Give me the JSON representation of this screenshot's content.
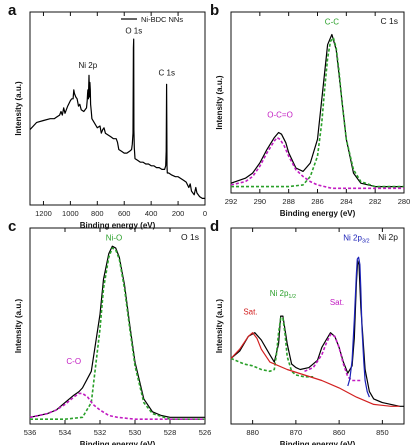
{
  "chart_data": [
    {
      "panel": "a",
      "type": "line",
      "title": "",
      "xlabel": "Binding energy (eV)",
      "ylabel": "Intensity (a.u.)",
      "xlim": [
        1300,
        0
      ],
      "ylim": [
        0,
        100
      ],
      "xticks": [
        1200,
        1000,
        800,
        600,
        400,
        200,
        0
      ],
      "series": [
        {
          "name": "Ni-BDC NNs",
          "color": "#000000",
          "x": [
            1300,
            1250,
            1200,
            1150,
            1120,
            1100,
            1080,
            1070,
            1060,
            1050,
            1040,
            1020,
            1000,
            990,
            980,
            975,
            970,
            960,
            950,
            940,
            930,
            920,
            900,
            880,
            875,
            872,
            870,
            866,
            862,
            858,
            855,
            852,
            850,
            845,
            840,
            800,
            780,
            770,
            760,
            750,
            740,
            720,
            700,
            680,
            660,
            650,
            640,
            620,
            600,
            580,
            560,
            545,
            540,
            535,
            532,
            530,
            528,
            525,
            520,
            500,
            480,
            460,
            440,
            420,
            400,
            380,
            360,
            340,
            320,
            300,
            292,
            288,
            286,
            285,
            284,
            282,
            280,
            270,
            250,
            220,
            200,
            180,
            160,
            140,
            120,
            110,
            100,
            80,
            68,
            60,
            40,
            20,
            0
          ],
          "y": [
            40,
            44,
            45,
            46,
            46,
            47,
            48,
            50,
            48,
            52,
            49,
            53,
            56,
            57,
            57,
            62,
            60,
            58,
            57,
            53,
            54,
            51,
            50,
            52,
            56,
            60,
            62,
            57,
            70,
            58,
            66,
            62,
            54,
            50,
            46,
            41,
            42,
            38,
            40,
            41,
            38,
            37,
            36,
            35,
            35,
            33,
            29,
            28,
            27,
            27,
            28,
            29,
            32,
            38,
            85,
            90,
            40,
            30,
            24,
            23,
            22,
            22,
            21,
            21,
            20,
            20,
            19,
            19,
            18,
            18,
            20,
            28,
            55,
            65,
            45,
            20,
            16,
            16,
            15,
            14,
            14,
            13,
            12,
            11,
            8,
            10,
            6,
            4,
            8,
            5,
            3,
            2,
            2
          ]
        }
      ],
      "annotations": [
        {
          "text": "Ni 2p",
          "x": 870,
          "y": 74
        },
        {
          "text": "O 1s",
          "x": 529,
          "y": 93
        },
        {
          "text": "C 1s",
          "x": 284,
          "y": 70
        }
      ]
    },
    {
      "panel": "b",
      "type": "line",
      "title": "C 1s",
      "xlabel": "Binding energy (eV)",
      "ylabel": "Intensity (a.u.)",
      "xlim": [
        292,
        280
      ],
      "ylim": [
        0,
        100
      ],
      "xticks": [
        292,
        290,
        288,
        286,
        284,
        282,
        280
      ],
      "series": [
        {
          "name": "",
          "color": "#000000",
          "x": [
            292,
            291,
            290.5,
            290,
            289.5,
            289,
            288.7,
            288.5,
            288.2,
            288,
            287.5,
            287,
            286.5,
            286,
            285.6,
            285.3,
            285,
            284.7,
            284.4,
            284,
            283.5,
            283,
            282,
            281,
            280
          ],
          "y": [
            4,
            7,
            10,
            16,
            24,
            31,
            34,
            33,
            28,
            22,
            13,
            11,
            16,
            30,
            62,
            86,
            92,
            83,
            60,
            30,
            10,
            4,
            2,
            2,
            2
          ]
        },
        {
          "name": "",
          "color": "#2aa02a",
          "dash": true,
          "x": [
            292,
            290,
            288,
            287,
            286.5,
            286,
            285.7,
            285.5,
            285.3,
            285.1,
            284.9,
            284.7,
            284.5,
            284.3,
            284,
            283.5,
            283,
            282,
            280
          ],
          "y": [
            2,
            2,
            2,
            3,
            8,
            20,
            40,
            60,
            78,
            88,
            90,
            84,
            70,
            52,
            30,
            12,
            5,
            2,
            2
          ]
        },
        {
          "name": "",
          "color": "#c21cc2",
          "dash": true,
          "x": [
            292,
            291,
            290.5,
            290,
            289.5,
            289,
            288.8,
            288.6,
            288.3,
            288,
            287.5,
            287,
            286.5,
            286,
            285.5,
            285,
            284,
            283,
            282,
            280
          ],
          "y": [
            3,
            5,
            8,
            14,
            22,
            29,
            31,
            30,
            26,
            20,
            12,
            8,
            5,
            3,
            2,
            1,
            1,
            1,
            1,
            1
          ]
        }
      ],
      "annotations": [
        {
          "text": "O-C=O",
          "x": 288.6,
          "y": 43,
          "color": "#c21cc2"
        },
        {
          "text": "C-C",
          "x": 285.0,
          "y": 98,
          "color": "#2aa02a"
        }
      ]
    },
    {
      "panel": "c",
      "type": "line",
      "title": "O 1s",
      "xlabel": "Binding energy (eV)",
      "ylabel": "Intensity (a.u.)",
      "xlim": [
        536,
        526
      ],
      "ylim": [
        0,
        100
      ],
      "xticks": [
        536,
        534,
        532,
        530,
        528,
        526
      ],
      "series": [
        {
          "name": "",
          "color": "#000000",
          "x": [
            536,
            535.5,
            535,
            534.5,
            534,
            533.5,
            533.2,
            533,
            532.5,
            532,
            531.8,
            531.5,
            531.3,
            531.1,
            530.9,
            530.6,
            530.3,
            530,
            529.5,
            529,
            528.5,
            528,
            527,
            526
          ],
          "y": [
            2,
            3,
            4,
            6,
            10,
            14,
            16,
            18,
            27,
            58,
            77,
            91,
            95,
            94,
            89,
            74,
            52,
            32,
            12,
            5,
            3,
            2,
            2,
            2
          ]
        },
        {
          "name": "",
          "color": "#2aa02a",
          "dash": true,
          "x": [
            536,
            534,
            533,
            532.5,
            532,
            531.8,
            531.5,
            531.3,
            531.1,
            530.9,
            530.6,
            530.3,
            530,
            529.5,
            529,
            528,
            526
          ],
          "y": [
            1,
            1,
            2,
            10,
            50,
            72,
            89,
            94,
            93,
            88,
            72,
            50,
            30,
            10,
            4,
            1,
            1
          ]
        },
        {
          "name": "",
          "color": "#c21cc2",
          "dash": true,
          "x": [
            536,
            535.5,
            535,
            534.5,
            534,
            533.5,
            533.2,
            533,
            532.7,
            532.4,
            532,
            531.5,
            531,
            530,
            529,
            528,
            526
          ],
          "y": [
            2,
            3,
            4,
            6,
            9,
            13,
            15,
            15,
            13,
            9,
            6,
            3,
            2,
            1,
            1,
            1,
            1
          ]
        }
      ],
      "annotations": [
        {
          "text": "C-O",
          "x": 533.5,
          "y": 31,
          "color": "#c21cc2"
        },
        {
          "text": "Ni-O",
          "x": 531.2,
          "y": 98,
          "color": "#2aa02a"
        }
      ]
    },
    {
      "panel": "d",
      "type": "line",
      "title": "Ni 2p",
      "xlabel": "Binding energy (eV)",
      "ylabel": "Intensity (a.u.)",
      "xlim": [
        885,
        845
      ],
      "ylim": [
        0,
        100
      ],
      "xticks": [
        880,
        870,
        860,
        850
      ],
      "series": [
        {
          "name": "",
          "color": "#000000",
          "x": [
            885,
            883,
            881,
            879.5,
            878,
            876,
            875,
            874,
            873.5,
            873,
            872,
            871,
            870,
            869,
            867,
            865,
            864,
            863,
            862,
            861,
            860,
            859,
            858,
            857,
            856.5,
            856,
            855.7,
            855.4,
            855,
            854,
            853,
            852,
            850,
            848,
            846,
            845
          ],
          "y": [
            34,
            38,
            46,
            48,
            44,
            36,
            32,
            42,
            57,
            57,
            42,
            31,
            29,
            28,
            29,
            33,
            40,
            44,
            48,
            46,
            40,
            32,
            26,
            30,
            45,
            75,
            87,
            85,
            62,
            28,
            16,
            12,
            10,
            9,
            8,
            8
          ]
        },
        {
          "name": "",
          "color": "#2aa02a",
          "dash": true,
          "x": [
            885,
            882,
            880,
            878,
            876,
            875,
            874.5,
            874,
            873.5,
            873,
            872.5,
            872,
            871,
            870,
            868,
            866
          ],
          "y": [
            34,
            31,
            30,
            28,
            27,
            28,
            36,
            48,
            56,
            56,
            47,
            35,
            27,
            25,
            24,
            24
          ]
        },
        {
          "name": "",
          "color": "#c21cc2",
          "dash": true,
          "x": [
            868,
            866,
            864,
            863,
            862,
            861,
            860,
            859,
            858,
            857,
            856,
            855
          ],
          "y": [
            27,
            29,
            36,
            42,
            47,
            46,
            40,
            31,
            24,
            22,
            22,
            22
          ]
        },
        {
          "name": "",
          "color": "#1c22b8",
          "x": [
            858,
            857.5,
            857,
            856.5,
            856,
            855.8,
            855.5,
            855.2,
            855,
            854.7,
            854.3,
            854,
            853.5,
            853
          ],
          "y": [
            19,
            23,
            33,
            55,
            80,
            88,
            89,
            85,
            72,
            50,
            32,
            22,
            16,
            13
          ]
        },
        {
          "name": "",
          "color": "#d22020",
          "x": [
            885,
            883,
            881,
            880,
            879,
            878,
            876,
            872,
            868,
            864,
            860,
            856,
            852,
            848,
            846
          ],
          "y": [
            34,
            39,
            46,
            48,
            45,
            39,
            32,
            28,
            25,
            22,
            18,
            13,
            9,
            8,
            8
          ]
        }
      ],
      "annotations": [
        {
          "text": "Sat.",
          "x": 880.5,
          "y": 58,
          "color": "#d22020"
        },
        {
          "text": "Ni 2p",
          "sub": "1/2",
          "x": 873.0,
          "y": 68,
          "color": "#2aa02a"
        },
        {
          "text": "Sat.",
          "x": 860.5,
          "y": 63,
          "color": "#c21cc2"
        },
        {
          "text": "Ni 2p",
          "sub": "3/2",
          "x": 856.0,
          "y": 98,
          "color": "#1c22b8"
        }
      ]
    }
  ],
  "panel_labels": [
    "a",
    "b",
    "c",
    "d"
  ]
}
